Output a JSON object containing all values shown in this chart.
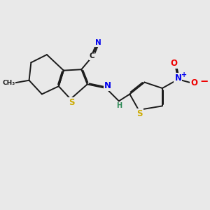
{
  "bg_color": "#e9e9e9",
  "bond_color": "#1a1a1a",
  "bond_width": 1.4,
  "dbo": 0.055,
  "atom_colors": {
    "S": "#ccaa00",
    "N": "#0000ee",
    "O": "#ee0000",
    "H": "#2e8b57",
    "C": "#1a1a1a",
    "plus": "#0000ee",
    "minus": "#ee0000"
  },
  "fs": 8.5,
  "fs_sm": 7.0
}
